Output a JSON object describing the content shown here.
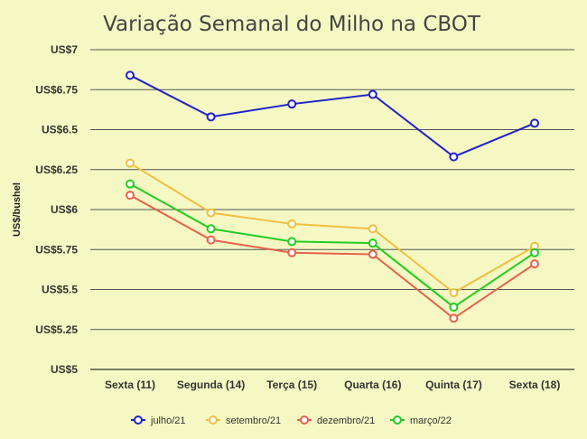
{
  "chart_data": {
    "type": "line",
    "title": "Variação Semanal do Milho na CBOT",
    "xlabel": "",
    "ylabel": "US$/bushel",
    "categories": [
      "Sexta (11)",
      "Segunda (14)",
      "Terça (15)",
      "Quarta (16)",
      "Quinta (17)",
      "Sexta (18)"
    ],
    "yticks": [
      "US$5",
      "US$5.25",
      "US$5.5",
      "US$5.75",
      "US$6",
      "US$6.25",
      "US$6.5",
      "US$6.75",
      "US$7"
    ],
    "ylim": [
      5,
      7
    ],
    "grid": true,
    "legend_position": "bottom",
    "series": [
      {
        "name": "julho/21",
        "color": "#2222cc",
        "values": [
          6.84,
          6.58,
          6.66,
          6.72,
          6.33,
          6.54
        ]
      },
      {
        "name": "setembro/21",
        "color": "#f0bf40",
        "values": [
          6.29,
          5.98,
          5.91,
          5.88,
          5.48,
          5.77
        ]
      },
      {
        "name": "dezembro/21",
        "color": "#e8604a",
        "values": [
          6.09,
          5.81,
          5.73,
          5.72,
          5.32,
          5.66
        ]
      },
      {
        "name": "março/22",
        "color": "#22cc22",
        "values": [
          6.16,
          5.88,
          5.8,
          5.79,
          5.39,
          5.73
        ]
      }
    ]
  }
}
